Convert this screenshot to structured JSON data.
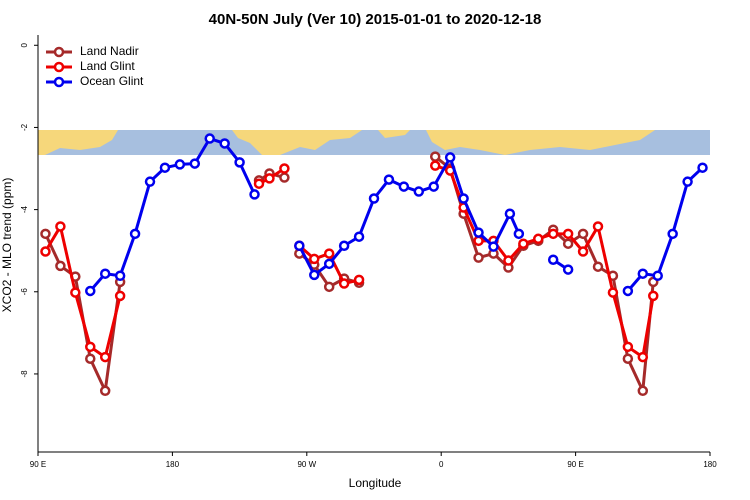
{
  "chart_data": {
    "type": "line",
    "title": "40N-50N July (Ver 10)   2015-01-01 to 2020-12-18",
    "x_label": "Longitude",
    "y_label": "XCO2 - MLO trend (ppm)",
    "xlim": [
      90,
      540
    ],
    "xticks": [
      {
        "value": 90,
        "label": "90 E"
      },
      180,
      {
        "value": 270,
        "label": "90 W"
      },
      {
        "value": 360,
        "label": "0"
      },
      {
        "value": 450,
        "label": "90 E"
      },
      {
        "value": 540,
        "label": "180"
      }
    ],
    "ylim": [
      -9.9,
      0.25
    ],
    "yticks": [
      0,
      -2,
      -4,
      -6,
      -8
    ],
    "legend": "top-left",
    "series": [
      {
        "name": "Land Nadir",
        "color": "#a52a2a",
        "x": [
          95,
          105,
          115,
          125,
          135,
          145,
          null,
          238,
          245,
          255,
          null,
          265,
          275,
          285,
          295,
          305,
          null,
          356,
          366,
          375,
          385,
          395,
          405,
          415,
          425,
          435,
          445,
          455,
          465,
          475,
          485,
          495,
          502
        ],
        "values": [
          -4.59,
          -5.37,
          -5.63,
          -7.63,
          -8.41,
          -5.76,
          null,
          -3.29,
          -3.12,
          -3.22,
          null,
          -5.07,
          -5.34,
          -5.88,
          -5.68,
          -5.78,
          null,
          -2.71,
          -3.0,
          -4.1,
          -5.17,
          -5.07,
          -5.41,
          -4.88,
          -4.76,
          -4.49,
          -4.83,
          -4.59,
          -5.39,
          -5.61,
          -7.63,
          -8.41,
          -5.76
        ]
      },
      {
        "name": "Land Glint",
        "color": "#ee0000",
        "x": [
          95,
          105,
          115,
          125,
          135,
          145,
          null,
          238,
          245,
          255,
          null,
          265,
          275,
          285,
          295,
          305,
          null,
          356,
          366,
          375,
          385,
          395,
          405,
          415,
          425,
          435,
          445,
          455,
          465,
          475,
          485,
          495,
          502
        ],
        "values": [
          -5.02,
          -4.41,
          -6.02,
          -7.34,
          -7.59,
          -6.1,
          null,
          -3.37,
          -3.24,
          -3.0,
          null,
          -4.88,
          -5.2,
          -5.07,
          -5.8,
          -5.71,
          null,
          -2.93,
          -3.05,
          -3.95,
          -4.76,
          -4.76,
          -5.24,
          -4.83,
          -4.71,
          -4.59,
          -4.59,
          -5.02,
          -4.41,
          -6.02,
          -7.34,
          -7.59,
          -6.1
        ]
      },
      {
        "name": "Ocean Glint",
        "color": "#0000ee",
        "x": [
          125,
          135,
          145,
          155,
          165,
          175,
          185,
          195,
          205,
          215,
          225,
          235,
          null,
          265,
          275,
          285,
          295,
          305,
          315,
          325,
          335,
          345,
          355,
          366,
          375,
          385,
          395,
          406,
          412,
          null,
          435,
          445,
          null,
          485,
          495,
          505,
          515,
          525,
          535
        ],
        "values": [
          -5.98,
          -5.56,
          -5.61,
          -4.59,
          -3.32,
          -2.98,
          -2.9,
          -2.88,
          -2.27,
          -2.39,
          -2.85,
          -3.63,
          null,
          -4.88,
          -5.59,
          -5.32,
          -4.88,
          -4.66,
          -3.73,
          -3.27,
          -3.44,
          -3.56,
          -3.44,
          -2.73,
          -3.73,
          -4.56,
          -4.9,
          -4.1,
          -4.59,
          null,
          -5.22,
          -5.46,
          null,
          -5.98,
          -5.56,
          -5.61,
          -4.59,
          -3.32,
          -2.98
        ]
      }
    ]
  }
}
